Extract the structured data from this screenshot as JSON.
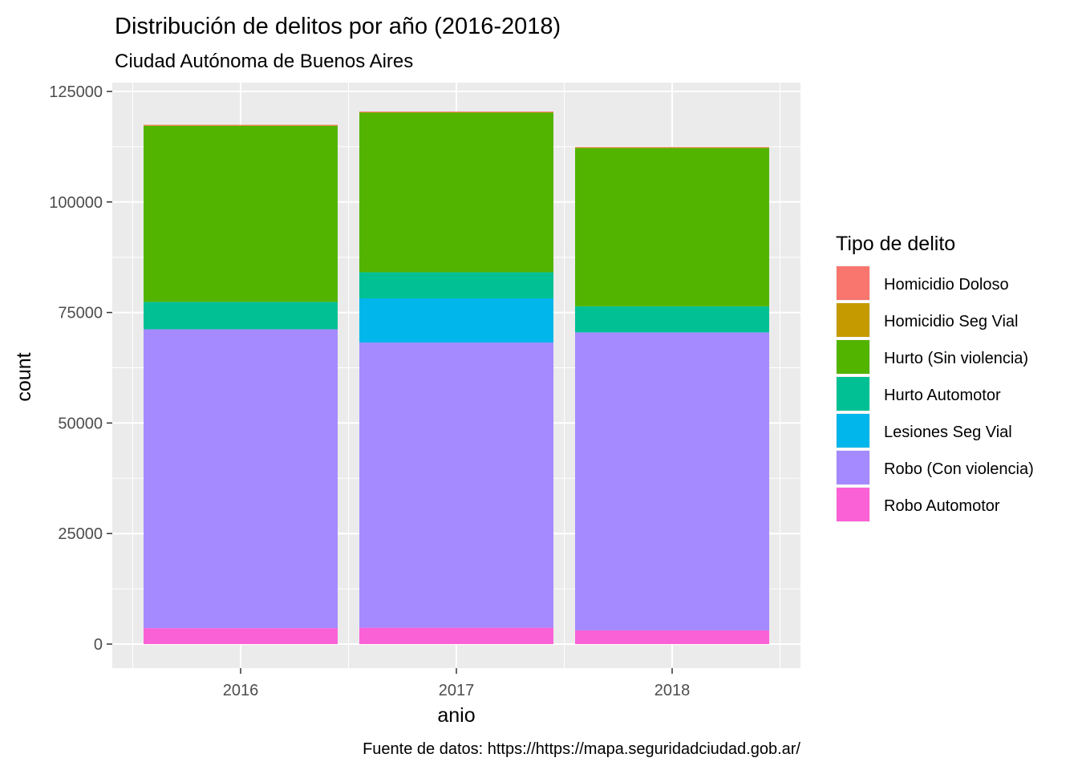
{
  "chart_data": {
    "type": "bar",
    "stacked": true,
    "title": "Distribución de delitos por año (2016-2018)",
    "subtitle": "Ciudad Autónoma de Buenos Aires",
    "caption": "Fuente de datos: https://https://mapa.seguridadciudad.gob.ar/",
    "xlabel": "anio",
    "ylabel": "count",
    "ylim": [
      -6000,
      126500
    ],
    "yticks": [
      0,
      25000,
      50000,
      75000,
      100000,
      125000
    ],
    "ytick_labels": [
      "0",
      "25000",
      "50000",
      "75000",
      "100000",
      "125000"
    ],
    "categories": [
      "2016",
      "2017",
      "2018"
    ],
    "legend": {
      "title": "Tipo de delito",
      "position": "right"
    },
    "grid": true,
    "panel_background": "#ebebeb",
    "series": [
      {
        "name": "Homicidio Doloso",
        "color": "#F8766D",
        "values": [
          150,
          160,
          140
        ]
      },
      {
        "name": "Homicidio Seg Vial",
        "color": "#C49A00",
        "values": [
          100,
          100,
          90
        ]
      },
      {
        "name": "Hurto (Sin violencia)",
        "color": "#53B400",
        "values": [
          39800,
          36100,
          35800
        ]
      },
      {
        "name": "Hurto Automotor",
        "color": "#00C094",
        "values": [
          6200,
          5900,
          5900
        ]
      },
      {
        "name": "Lesiones Seg Vial",
        "color": "#00B6EB",
        "values": [
          0,
          10000,
          0
        ]
      },
      {
        "name": "Robo (Con violencia)",
        "color": "#A58AFF",
        "values": [
          67600,
          64500,
          67400
        ]
      },
      {
        "name": "Robo Automotor",
        "color": "#FB61D7",
        "values": [
          3600,
          3700,
          3100
        ]
      }
    ]
  }
}
